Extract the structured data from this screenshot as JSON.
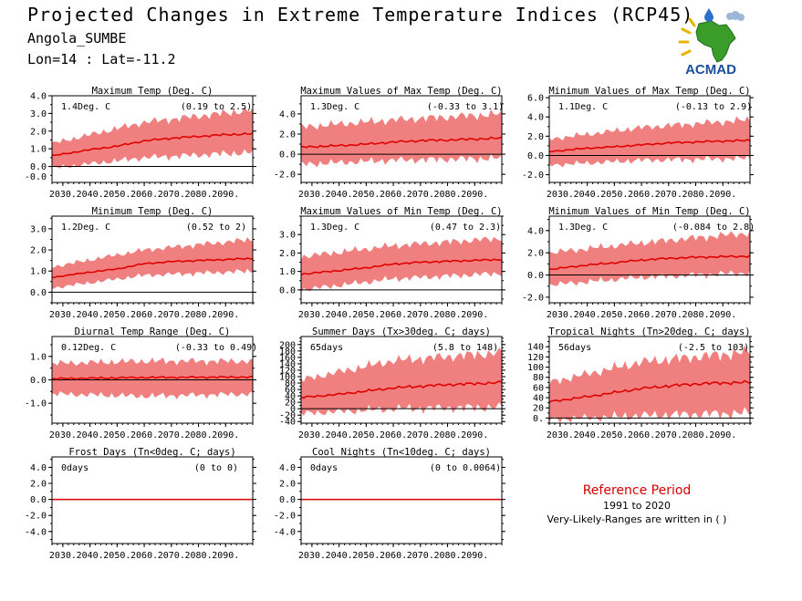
{
  "header": {
    "title": "Projected Changes in Extreme Temperature Indices (RCP45)",
    "location": "Angola_SUMBE",
    "coords": "Lon=14 : Lat=-11.2",
    "logo_text": "ACMAD"
  },
  "reference": {
    "title": "Reference Period",
    "years": "1991 to 2020",
    "note": "Very-Likely-Ranges are written in ( )"
  },
  "colors": {
    "median_line": "#e00000",
    "range_band": "#f08080",
    "zero_line": "#000000",
    "title_red": "#d40000"
  },
  "chart_data": [
    {
      "type": "area",
      "title": "Maximum Temp (Deg. C)",
      "mean_label": "1.4Deg. C",
      "range_label": "(0.19 to 2.5)",
      "xlabels": [
        "2030.",
        "2040.",
        "2050.",
        "2060.",
        "2070.",
        "2080.",
        "2090."
      ],
      "x_range": [
        2026,
        2100
      ],
      "ylim": [
        -0.9,
        4.0
      ],
      "yticks": [
        -0.0,
        1.0,
        2.0,
        3.0,
        4.0
      ],
      "ytick_labels": [
        "0.0",
        "1.0",
        "2.0",
        "3.0",
        "4.0"
      ],
      "extra_ytick": "-0.0",
      "median": [
        [
          2026,
          0.6
        ],
        [
          2040,
          0.95
        ],
        [
          2050,
          1.15
        ],
        [
          2060,
          1.45
        ],
        [
          2070,
          1.6
        ],
        [
          2080,
          1.7
        ],
        [
          2090,
          1.8
        ],
        [
          2100,
          1.85
        ]
      ],
      "band_lower": [
        [
          2026,
          -0.1
        ],
        [
          2060,
          0.5
        ],
        [
          2100,
          0.8
        ]
      ],
      "band_upper": [
        [
          2026,
          1.3
        ],
        [
          2060,
          2.5
        ],
        [
          2100,
          3.2
        ]
      ]
    },
    {
      "type": "area",
      "title": "Maximum Values of Max Temp (Deg. C)",
      "mean_label": "1.3Deg. C",
      "range_label": "(-0.33 to 3.1)",
      "xlabels": [
        "2030.",
        "2040.",
        "2050.",
        "2060.",
        "2070.",
        "2080.",
        "2090."
      ],
      "x_range": [
        2026,
        2100
      ],
      "ylim": [
        -2.8,
        5.8
      ],
      "yticks": [
        -2.0,
        0.0,
        2.0,
        4.0
      ],
      "ytick_labels": [
        "-2.0",
        "0.0",
        "2.0",
        "4.0"
      ],
      "median": [
        [
          2026,
          0.7
        ],
        [
          2040,
          0.85
        ],
        [
          2050,
          1.0
        ],
        [
          2060,
          1.2
        ],
        [
          2070,
          1.35
        ],
        [
          2080,
          1.4
        ],
        [
          2090,
          1.5
        ],
        [
          2100,
          1.6
        ]
      ],
      "band_lower": [
        [
          2026,
          -1.0
        ],
        [
          2060,
          -0.6
        ],
        [
          2100,
          -0.4
        ]
      ],
      "band_upper": [
        [
          2026,
          2.7
        ],
        [
          2060,
          3.4
        ],
        [
          2100,
          4.0
        ]
      ]
    },
    {
      "type": "area",
      "title": "Minimum Values of Max Temp (Deg. C)",
      "mean_label": "1.1Deg. C",
      "range_label": "(-0.13 to 2.9)",
      "xlabels": [
        "2030.",
        "2040.",
        "2050.",
        "2060.",
        "2070.",
        "2080.",
        "2090."
      ],
      "x_range": [
        2026,
        2100
      ],
      "ylim": [
        -2.8,
        6.2
      ],
      "yticks": [
        -2.0,
        0.0,
        2.0,
        4.0,
        6.0
      ],
      "ytick_labels": [
        "-2.0",
        "0.0",
        "2.0",
        "4.0",
        "6.0"
      ],
      "median": [
        [
          2026,
          0.4
        ],
        [
          2040,
          0.75
        ],
        [
          2050,
          0.9
        ],
        [
          2060,
          1.1
        ],
        [
          2070,
          1.3
        ],
        [
          2080,
          1.4
        ],
        [
          2090,
          1.5
        ],
        [
          2100,
          1.55
        ]
      ],
      "band_lower": [
        [
          2026,
          -1.0
        ],
        [
          2060,
          -0.5
        ],
        [
          2100,
          -0.3
        ]
      ],
      "band_upper": [
        [
          2026,
          1.7
        ],
        [
          2060,
          2.9
        ],
        [
          2100,
          3.7
        ]
      ]
    },
    {
      "type": "area",
      "title": "Minimum Temp (Deg. C)",
      "mean_label": "1.2Deg. C",
      "range_label": "(0.52 to 2)",
      "xlabels": [
        "2030.",
        "2040.",
        "2050.",
        "2060.",
        "2070.",
        "2080.",
        "2090."
      ],
      "x_range": [
        2026,
        2100
      ],
      "ylim": [
        -0.5,
        3.6
      ],
      "yticks": [
        0.0,
        1.0,
        2.0,
        3.0
      ],
      "ytick_labels": [
        "0.0",
        "1.0",
        "2.0",
        "3.0"
      ],
      "median": [
        [
          2026,
          0.7
        ],
        [
          2040,
          0.95
        ],
        [
          2050,
          1.1
        ],
        [
          2060,
          1.35
        ],
        [
          2070,
          1.45
        ],
        [
          2080,
          1.5
        ],
        [
          2090,
          1.55
        ],
        [
          2100,
          1.6
        ]
      ],
      "band_lower": [
        [
          2026,
          0.2
        ],
        [
          2060,
          0.8
        ],
        [
          2100,
          1.0
        ]
      ],
      "band_upper": [
        [
          2026,
          1.2
        ],
        [
          2060,
          2.0
        ],
        [
          2100,
          2.5
        ]
      ]
    },
    {
      "type": "area",
      "title": "Maximum Values of Min Temp (Deg. C)",
      "mean_label": "1.3Deg. C",
      "range_label": "(0.47 to 2.3)",
      "xlabels": [
        "2030.",
        "2040.",
        "2050.",
        "2060.",
        "2070.",
        "2080.",
        "2090."
      ],
      "x_range": [
        2026,
        2100
      ],
      "ylim": [
        -0.7,
        4.0
      ],
      "yticks": [
        0.0,
        1.0,
        2.0,
        3.0
      ],
      "ytick_labels": [
        "0.0",
        "1.0",
        "2.0",
        "3.0"
      ],
      "median": [
        [
          2026,
          0.85
        ],
        [
          2040,
          1.05
        ],
        [
          2050,
          1.2
        ],
        [
          2060,
          1.4
        ],
        [
          2070,
          1.5
        ],
        [
          2080,
          1.55
        ],
        [
          2090,
          1.6
        ],
        [
          2100,
          1.65
        ]
      ],
      "band_lower": [
        [
          2026,
          0.0
        ],
        [
          2060,
          0.6
        ],
        [
          2100,
          0.9
        ]
      ],
      "band_upper": [
        [
          2026,
          1.8
        ],
        [
          2060,
          2.4
        ],
        [
          2100,
          2.8
        ]
      ]
    },
    {
      "type": "area",
      "title": "Minimum Values of Min Temp (Deg. C)",
      "mean_label": "1.3Deg. C",
      "range_label": "(-0.084 to 2.8)",
      "xlabels": [
        "2030.",
        "2040.",
        "2050.",
        "2060.",
        "2070.",
        "2080.",
        "2090."
      ],
      "x_range": [
        2026,
        2100
      ],
      "ylim": [
        -2.5,
        5.3
      ],
      "yticks": [
        -2.0,
        0.0,
        2.0,
        4.0
      ],
      "ytick_labels": [
        "-2.0",
        "0.0",
        "2.0",
        "4.0"
      ],
      "median": [
        [
          2026,
          0.5
        ],
        [
          2040,
          0.9
        ],
        [
          2050,
          1.1
        ],
        [
          2060,
          1.35
        ],
        [
          2070,
          1.5
        ],
        [
          2080,
          1.6
        ],
        [
          2090,
          1.65
        ],
        [
          2100,
          1.7
        ]
      ],
      "band_lower": [
        [
          2026,
          -0.9
        ],
        [
          2060,
          -0.2
        ],
        [
          2100,
          0.2
        ]
      ],
      "band_upper": [
        [
          2026,
          2.0
        ],
        [
          2060,
          2.9
        ],
        [
          2100,
          3.8
        ]
      ]
    },
    {
      "type": "area",
      "title": "Diurnal Temp Range (Deg. C)",
      "mean_label": "0.12Deg. C",
      "range_label": "(-0.33 to 0.49)",
      "xlabels": [
        "2030.",
        "2040.",
        "2050.",
        "2060.",
        "2070.",
        "2080.",
        "2090."
      ],
      "x_range": [
        2026,
        2100
      ],
      "ylim": [
        -1.85,
        1.85
      ],
      "yticks": [
        -1.0,
        0.0,
        1.0
      ],
      "ytick_labels": [
        "-1.0",
        "0.0",
        "1.0"
      ],
      "median": [
        [
          2026,
          0.05
        ],
        [
          2060,
          0.1
        ],
        [
          2100,
          0.12
        ]
      ],
      "band_lower": [
        [
          2026,
          -0.6
        ],
        [
          2060,
          -0.7
        ],
        [
          2100,
          -0.6
        ]
      ],
      "band_upper": [
        [
          2026,
          0.7
        ],
        [
          2060,
          0.8
        ],
        [
          2100,
          0.8
        ]
      ]
    },
    {
      "type": "area",
      "title": "Summer Days (Tx>30deg. C; days)",
      "mean_label": "65days",
      "range_label": "(5.8 to 148)",
      "xlabels": [
        "2030.",
        "2040.",
        "2050.",
        "2060.",
        "2070.",
        "2080.",
        "2090."
      ],
      "x_range": [
        2026,
        2100
      ],
      "ylim": [
        -45,
        225
      ],
      "yticks": [
        -40,
        -20,
        0,
        20,
        40,
        60,
        80,
        100,
        120,
        140,
        160,
        180,
        200
      ],
      "ytick_labels": [
        "-40",
        "-20",
        "0",
        "20",
        "40",
        "60",
        "80",
        "100",
        "120",
        "140",
        "160",
        "180",
        "200"
      ],
      "median": [
        [
          2026,
          35
        ],
        [
          2040,
          45
        ],
        [
          2050,
          55
        ],
        [
          2060,
          65
        ],
        [
          2070,
          70
        ],
        [
          2080,
          75
        ],
        [
          2090,
          78
        ],
        [
          2100,
          82
        ]
      ],
      "band_lower": [
        [
          2026,
          -15
        ],
        [
          2060,
          0
        ],
        [
          2100,
          5
        ]
      ],
      "band_upper": [
        [
          2026,
          90
        ],
        [
          2060,
          150
        ],
        [
          2100,
          175
        ]
      ]
    },
    {
      "type": "area",
      "title": "Tropical Nights (Tn>20deg. C; days)",
      "mean_label": "56days",
      "range_label": "(-2.5 to 103)",
      "xlabels": [
        "2030.",
        "2040.",
        "2050.",
        "2060.",
        "2070.",
        "2080.",
        "2090."
      ],
      "x_range": [
        2026,
        2100
      ],
      "ylim": [
        -10,
        160
      ],
      "yticks": [
        0,
        20,
        40,
        60,
        80,
        100,
        120,
        140
      ],
      "ytick_labels": [
        "0.",
        "20",
        "40",
        "60",
        "80",
        "100",
        "120",
        "140"
      ],
      "median": [
        [
          2026,
          32
        ],
        [
          2040,
          42
        ],
        [
          2050,
          50
        ],
        [
          2060,
          58
        ],
        [
          2070,
          63
        ],
        [
          2080,
          67
        ],
        [
          2090,
          69
        ],
        [
          2100,
          70
        ]
      ],
      "band_lower": [
        [
          2026,
          -3
        ],
        [
          2060,
          5
        ],
        [
          2100,
          10
        ]
      ],
      "band_upper": [
        [
          2026,
          70
        ],
        [
          2060,
          110
        ],
        [
          2100,
          130
        ]
      ]
    },
    {
      "type": "area",
      "title": "Frost Days (Tn<0deg. C; days)",
      "mean_label": "0days",
      "range_label": "(0 to 0)",
      "xlabels": [
        "2030.",
        "2040.",
        "2050.",
        "2060.",
        "2070.",
        "2080.",
        "2090."
      ],
      "x_range": [
        2026,
        2100
      ],
      "ylim": [
        -5.5,
        5.3
      ],
      "yticks": [
        -4.0,
        -2.0,
        0.0,
        2.0,
        4.0
      ],
      "ytick_labels": [
        "-4.0",
        "-2.0",
        "0.0",
        "2.0",
        "4.0"
      ],
      "median": [
        [
          2026,
          0
        ],
        [
          2100,
          0
        ]
      ],
      "band_lower": [
        [
          2026,
          0
        ],
        [
          2100,
          0
        ]
      ],
      "band_upper": [
        [
          2026,
          0
        ],
        [
          2100,
          0
        ]
      ]
    },
    {
      "type": "area",
      "title": "Cool Nights (Tn<10deg. C; days)",
      "mean_label": "0days",
      "range_label": "(0 to 0.0064)",
      "xlabels": [
        "2030.",
        "2040.",
        "2050.",
        "2060.",
        "2070.",
        "2080.",
        "2090."
      ],
      "x_range": [
        2026,
        2100
      ],
      "ylim": [
        -5.5,
        5.3
      ],
      "yticks": [
        -4.0,
        -2.0,
        0.0,
        2.0,
        4.0
      ],
      "ytick_labels": [
        "-4.0",
        "-2.0",
        "0.0",
        "2.0",
        "4.0"
      ],
      "median": [
        [
          2026,
          0
        ],
        [
          2100,
          0
        ]
      ],
      "band_lower": [
        [
          2026,
          0
        ],
        [
          2100,
          0
        ]
      ],
      "band_upper": [
        [
          2026,
          0
        ],
        [
          2100,
          0
        ]
      ]
    }
  ]
}
